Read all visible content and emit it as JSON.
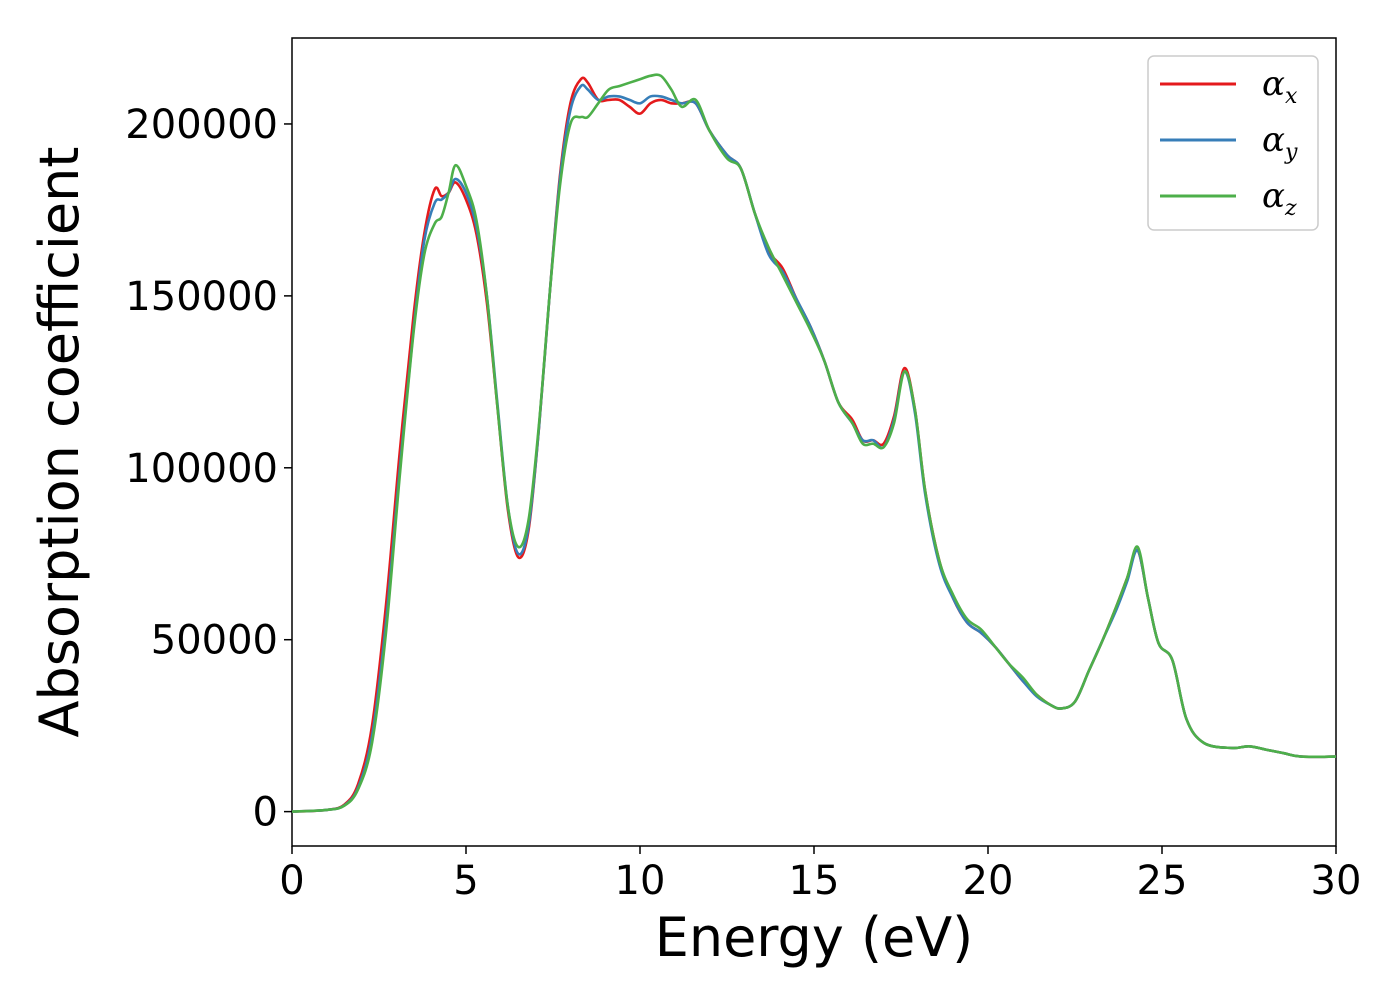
{
  "chart_data": {
    "type": "line",
    "title": "",
    "xlabel": "Energy (eV)",
    "ylabel": "Absorption coefficient",
    "xlim": [
      0,
      30
    ],
    "ylim": [
      -10000,
      225000
    ],
    "xticks": [
      "0",
      "5",
      "10",
      "15",
      "20",
      "25",
      "30"
    ],
    "yticks": [
      "0",
      "50000",
      "100000",
      "150000",
      "200000"
    ],
    "grid": false,
    "legend_position": "top-right",
    "series": [
      {
        "name": "α_x",
        "label_main": "α",
        "label_sub": "x",
        "color": "#e41a1c",
        "points": [
          [
            0,
            0
          ],
          [
            1,
            500
          ],
          [
            1.5,
            2000
          ],
          [
            1.9,
            8000
          ],
          [
            2.3,
            25000
          ],
          [
            2.7,
            60000
          ],
          [
            3.1,
            105000
          ],
          [
            3.5,
            145000
          ],
          [
            3.8,
            168000
          ],
          [
            4.1,
            181000
          ],
          [
            4.3,
            179000
          ],
          [
            4.5,
            180000
          ],
          [
            4.7,
            183000
          ],
          [
            5.0,
            178000
          ],
          [
            5.3,
            168000
          ],
          [
            5.6,
            148000
          ],
          [
            5.9,
            118000
          ],
          [
            6.2,
            88000
          ],
          [
            6.5,
            74000
          ],
          [
            6.8,
            82000
          ],
          [
            7.1,
            112000
          ],
          [
            7.4,
            150000
          ],
          [
            7.7,
            185000
          ],
          [
            8.0,
            206000
          ],
          [
            8.3,
            213000
          ],
          [
            8.5,
            212000
          ],
          [
            8.8,
            207000
          ],
          [
            9.1,
            207000
          ],
          [
            9.4,
            207000
          ],
          [
            9.7,
            205000
          ],
          [
            10.0,
            203000
          ],
          [
            10.3,
            206000
          ],
          [
            10.6,
            207000
          ],
          [
            10.9,
            206000
          ],
          [
            11.2,
            206000
          ],
          [
            11.6,
            206000
          ],
          [
            12.0,
            198000
          ],
          [
            12.5,
            191000
          ],
          [
            12.9,
            187000
          ],
          [
            13.3,
            174000
          ],
          [
            13.7,
            163000
          ],
          [
            14.1,
            158000
          ],
          [
            14.5,
            149000
          ],
          [
            14.9,
            141000
          ],
          [
            15.3,
            131000
          ],
          [
            15.7,
            119000
          ],
          [
            16.1,
            114000
          ],
          [
            16.4,
            108000
          ],
          [
            16.7,
            108000
          ],
          [
            17.0,
            107000
          ],
          [
            17.3,
            115000
          ],
          [
            17.6,
            129000
          ],
          [
            17.9,
            117000
          ],
          [
            18.2,
            93000
          ],
          [
            18.6,
            73000
          ],
          [
            19.0,
            62000
          ],
          [
            19.4,
            55000
          ],
          [
            19.8,
            52000
          ],
          [
            20.2,
            48000
          ],
          [
            20.6,
            43000
          ],
          [
            21.0,
            38000
          ],
          [
            21.4,
            34000
          ],
          [
            21.8,
            31000
          ],
          [
            22.1,
            30000
          ],
          [
            22.5,
            32000
          ],
          [
            22.9,
            41000
          ],
          [
            23.3,
            50000
          ],
          [
            23.7,
            60000
          ],
          [
            24.0,
            68000
          ],
          [
            24.3,
            76000
          ],
          [
            24.6,
            62000
          ],
          [
            24.9,
            49000
          ],
          [
            25.3,
            44000
          ],
          [
            25.7,
            27000
          ],
          [
            26.2,
            20000
          ],
          [
            27.0,
            18500
          ],
          [
            27.5,
            19000
          ],
          [
            28.0,
            18000
          ],
          [
            28.5,
            17000
          ],
          [
            29.0,
            16000
          ],
          [
            30.0,
            16000
          ]
        ]
      },
      {
        "name": "α_y",
        "label_main": "α",
        "label_sub": "y",
        "color": "#377eb8",
        "points": [
          [
            0,
            0
          ],
          [
            1,
            500
          ],
          [
            1.5,
            1800
          ],
          [
            1.9,
            7000
          ],
          [
            2.3,
            22000
          ],
          [
            2.7,
            55000
          ],
          [
            3.1,
            100000
          ],
          [
            3.5,
            141000
          ],
          [
            3.8,
            166000
          ],
          [
            4.1,
            177000
          ],
          [
            4.3,
            178000
          ],
          [
            4.5,
            180000
          ],
          [
            4.7,
            184000
          ],
          [
            5.0,
            180000
          ],
          [
            5.3,
            170000
          ],
          [
            5.6,
            150000
          ],
          [
            5.9,
            119000
          ],
          [
            6.2,
            89000
          ],
          [
            6.5,
            75000
          ],
          [
            6.8,
            83000
          ],
          [
            7.1,
            112000
          ],
          [
            7.4,
            150000
          ],
          [
            7.7,
            184000
          ],
          [
            8.0,
            204000
          ],
          [
            8.3,
            211000
          ],
          [
            8.5,
            210000
          ],
          [
            8.8,
            207000
          ],
          [
            9.1,
            208000
          ],
          [
            9.4,
            208000
          ],
          [
            9.7,
            207000
          ],
          [
            10.0,
            206000
          ],
          [
            10.3,
            208000
          ],
          [
            10.6,
            208000
          ],
          [
            10.9,
            207000
          ],
          [
            11.2,
            206000
          ],
          [
            11.6,
            206000
          ],
          [
            12.0,
            198000
          ],
          [
            12.5,
            191000
          ],
          [
            12.9,
            187000
          ],
          [
            13.3,
            174000
          ],
          [
            13.7,
            162000
          ],
          [
            14.1,
            157000
          ],
          [
            14.5,
            149000
          ],
          [
            14.9,
            141000
          ],
          [
            15.3,
            131000
          ],
          [
            15.7,
            119000
          ],
          [
            16.1,
            113000
          ],
          [
            16.4,
            108000
          ],
          [
            16.7,
            108000
          ],
          [
            17.0,
            106000
          ],
          [
            17.3,
            114000
          ],
          [
            17.6,
            128000
          ],
          [
            17.9,
            116000
          ],
          [
            18.2,
            92000
          ],
          [
            18.6,
            72000
          ],
          [
            19.0,
            62000
          ],
          [
            19.4,
            55000
          ],
          [
            19.8,
            52000
          ],
          [
            20.2,
            48000
          ],
          [
            20.6,
            43000
          ],
          [
            21.0,
            38000
          ],
          [
            21.4,
            33500
          ],
          [
            21.8,
            31000
          ],
          [
            22.1,
            30000
          ],
          [
            22.5,
            32000
          ],
          [
            22.9,
            41000
          ],
          [
            23.3,
            50000
          ],
          [
            23.7,
            59000
          ],
          [
            24.0,
            67000
          ],
          [
            24.3,
            76000
          ],
          [
            24.6,
            62000
          ],
          [
            24.9,
            49000
          ],
          [
            25.3,
            44000
          ],
          [
            25.7,
            27000
          ],
          [
            26.2,
            20000
          ],
          [
            27.0,
            18500
          ],
          [
            27.5,
            19000
          ],
          [
            28.0,
            18000
          ],
          [
            28.5,
            17000
          ],
          [
            29.0,
            16000
          ],
          [
            30.0,
            16000
          ]
        ]
      },
      {
        "name": "α_z",
        "label_main": "α",
        "label_sub": "z",
        "color": "#4daf4a",
        "points": [
          [
            0,
            0
          ],
          [
            1,
            500
          ],
          [
            1.5,
            1700
          ],
          [
            1.9,
            6500
          ],
          [
            2.3,
            20000
          ],
          [
            2.7,
            52000
          ],
          [
            3.1,
            98000
          ],
          [
            3.5,
            140000
          ],
          [
            3.8,
            162000
          ],
          [
            4.1,
            171000
          ],
          [
            4.3,
            173000
          ],
          [
            4.5,
            180000
          ],
          [
            4.7,
            188000
          ],
          [
            5.0,
            182000
          ],
          [
            5.3,
            172000
          ],
          [
            5.6,
            150000
          ],
          [
            5.9,
            118000
          ],
          [
            6.2,
            89000
          ],
          [
            6.5,
            77000
          ],
          [
            6.8,
            85000
          ],
          [
            7.1,
            113000
          ],
          [
            7.4,
            150000
          ],
          [
            7.7,
            182000
          ],
          [
            8.0,
            200000
          ],
          [
            8.3,
            202000
          ],
          [
            8.5,
            202000
          ],
          [
            8.8,
            206000
          ],
          [
            9.1,
            210000
          ],
          [
            9.4,
            211000
          ],
          [
            9.7,
            212000
          ],
          [
            10.0,
            213000
          ],
          [
            10.3,
            214000
          ],
          [
            10.6,
            214000
          ],
          [
            10.9,
            210000
          ],
          [
            11.2,
            205000
          ],
          [
            11.6,
            207000
          ],
          [
            12.0,
            198000
          ],
          [
            12.5,
            190000
          ],
          [
            12.9,
            187000
          ],
          [
            13.3,
            174000
          ],
          [
            13.7,
            164000
          ],
          [
            14.1,
            156000
          ],
          [
            14.5,
            148000
          ],
          [
            14.9,
            140000
          ],
          [
            15.3,
            131000
          ],
          [
            15.7,
            119000
          ],
          [
            16.1,
            113000
          ],
          [
            16.4,
            107000
          ],
          [
            16.7,
            107000
          ],
          [
            17.0,
            106000
          ],
          [
            17.3,
            113000
          ],
          [
            17.6,
            128000
          ],
          [
            17.9,
            117000
          ],
          [
            18.2,
            93000
          ],
          [
            18.6,
            73000
          ],
          [
            19.0,
            63000
          ],
          [
            19.4,
            56000
          ],
          [
            19.8,
            53000
          ],
          [
            20.2,
            48000
          ],
          [
            20.6,
            43000
          ],
          [
            21.0,
            39000
          ],
          [
            21.4,
            34000
          ],
          [
            21.8,
            31000
          ],
          [
            22.1,
            30000
          ],
          [
            22.5,
            32000
          ],
          [
            22.9,
            41000
          ],
          [
            23.3,
            50000
          ],
          [
            23.7,
            60000
          ],
          [
            24.0,
            68000
          ],
          [
            24.3,
            77000
          ],
          [
            24.6,
            62000
          ],
          [
            24.9,
            49000
          ],
          [
            25.3,
            44000
          ],
          [
            25.7,
            27000
          ],
          [
            26.2,
            20000
          ],
          [
            27.0,
            18500
          ],
          [
            27.5,
            19000
          ],
          [
            28.0,
            18000
          ],
          [
            28.5,
            17000
          ],
          [
            29.0,
            16000
          ],
          [
            30.0,
            16000
          ]
        ]
      }
    ]
  }
}
